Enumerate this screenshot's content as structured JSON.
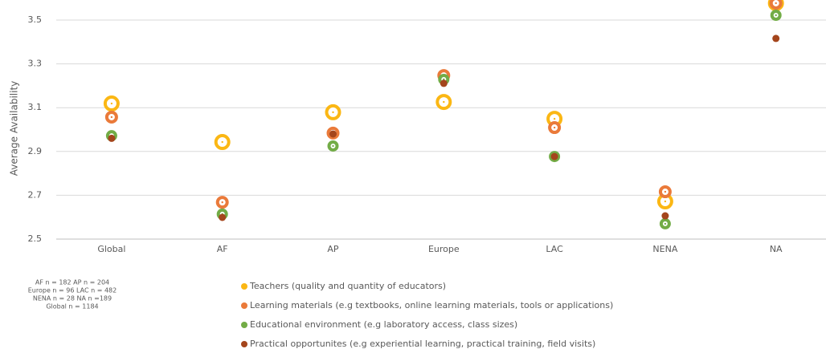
{
  "chart_data": {
    "type": "dot",
    "y_label": "Average Availability",
    "categories": [
      "Global",
      "AF",
      "AP",
      "Europe",
      "LAC",
      "NENA",
      "NA"
    ],
    "series": [
      {
        "name": "Teachers (quality and quantity of educators)",
        "color": "#fbb714",
        "marker": "ring",
        "values": [
          3.119,
          2.943,
          3.079,
          3.126,
          3.049,
          2.672,
          3.577
        ]
      },
      {
        "name": "Learning materials (e.g textbooks, online learning materials, tools or applications)",
        "color": "#ea7a3a",
        "marker": "ring",
        "values": [
          3.057,
          2.668,
          2.984,
          3.247,
          3.009,
          2.716,
          3.577
        ]
      },
      {
        "name": "Educational environment (e.g laboratory access, class sizes)",
        "color": "#72ac46",
        "marker": "ring",
        "values": [
          2.972,
          2.614,
          2.925,
          3.229,
          2.877,
          2.57,
          3.522
        ]
      },
      {
        "name": "Practical opportunites (e.g experiential learning, practical training, field visits)",
        "color": "#a4451c",
        "marker": "dot",
        "values": [
          2.96,
          2.599,
          2.98,
          3.211,
          2.877,
          2.606,
          3.416
        ]
      }
    ],
    "ylim": [
      2.5,
      3.6
    ],
    "yticks": [
      2.5,
      2.7,
      2.9,
      3.1,
      3.3,
      3.5
    ],
    "grid": true,
    "notes": [
      "AF n = 182 AP n = 204",
      "Europe n = 96  LAC n = 482",
      "NENA n = 28  NA n =189",
      "Global n = 1184"
    ]
  }
}
